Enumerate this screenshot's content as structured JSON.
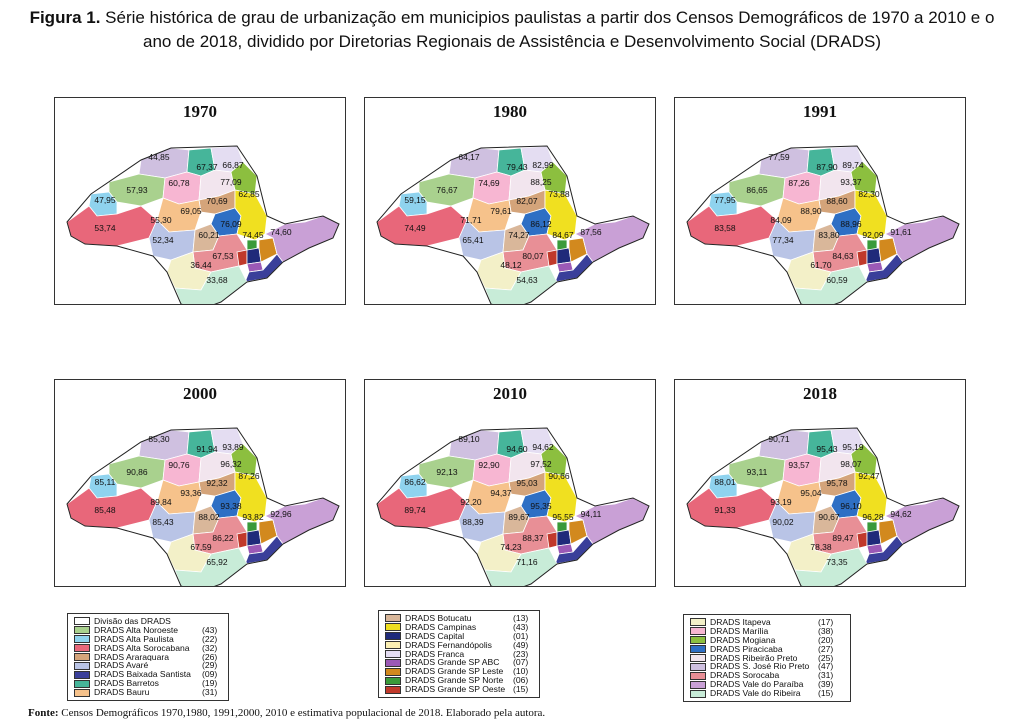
{
  "title": {
    "label": "Figura 1.",
    "text": "Série histórica de grau de urbanização em municipios paulistas a partir dos Censos Demográficos de 1970 a 2010 e o ano de 2018, dividido por Diretorias Regionais de Assistência e Desenvolvimento Social (DRADS)"
  },
  "colors": {
    "alta_noroeste": "#a9d18e",
    "alta_paulista": "#8fd3ee",
    "alta_sorocabana": "#e8677a",
    "araraquara": "#d4a47a",
    "avare": "#b9c4e6",
    "baixada_santista": "#3a3f9a",
    "barretos": "#46b59a",
    "bauru": "#f6c28b",
    "botucatu": "#d9b79a",
    "campinas": "#f0e020",
    "capital": "#1f2a7a",
    "fernandopolis": "#fbefb3",
    "franca": "#e4ddf2",
    "grande_sp_abc": "#9b59b6",
    "grande_sp_leste": "#d2891e",
    "grande_sp_norte": "#3a9a3a",
    "grande_sp_oeste": "#c0392b",
    "itapeva": "#f3f0c8",
    "marilia": "#f7b6d2",
    "mogiana": "#8cbf3f",
    "piracicaba": "#2e6fc4",
    "ribeirao_preto": "#f2e5ee",
    "sjrp": "#cfc0e0",
    "sorocaba": "#e88f96",
    "vale_paraiba": "#c9a0d6",
    "vale_ribeira": "#c8ecd8"
  },
  "maps": [
    {
      "year": "1970",
      "values": [
        "44,85",
        "67,37",
        "66,87",
        "57,93",
        "60,78",
        "77,09",
        "62,85",
        "47,95",
        "70,69",
        "69,05",
        "76,09",
        "53,74",
        "55,30",
        "74,45",
        "74,60",
        "52,34",
        "60,21",
        "67,53",
        "36,44",
        "33,68"
      ]
    },
    {
      "year": "1980",
      "values": [
        "64,17",
        "79,43",
        "82,99",
        "76,67",
        "74,69",
        "88,25",
        "73,88",
        "59,15",
        "82,07",
        "79,61",
        "86,12",
        "74,49",
        "71,71",
        "84,67",
        "87,56",
        "65,41",
        "74,27",
        "80,07",
        "48,12",
        "54,63"
      ]
    },
    {
      "year": "1991",
      "values": [
        "77,59",
        "87,90",
        "89,74",
        "86,65",
        "87,26",
        "93,37",
        "82,30",
        "77,95",
        "88,60",
        "88,90",
        "88,96",
        "83,58",
        "84,09",
        "92,09",
        "91,61",
        "77,34",
        "83,80",
        "84,63",
        "61,70",
        "60,59"
      ]
    },
    {
      "year": "2000",
      "values": [
        "85,30",
        "91,94",
        "93,89",
        "90,86",
        "90,76",
        "96,32",
        "87,26",
        "85,11",
        "92,32",
        "93,36",
        "93,38",
        "85,48",
        "89,84",
        "93,82",
        "92,96",
        "85,43",
        "88,02",
        "86,22",
        "67,59",
        "65,92"
      ]
    },
    {
      "year": "2010",
      "values": [
        "89,10",
        "94,60",
        "94,62",
        "92,13",
        "92,90",
        "97,52",
        "90,66",
        "86,62",
        "95,03",
        "94,37",
        "95,35",
        "89,74",
        "92,20",
        "95,55",
        "94,11",
        "88,39",
        "89,67",
        "88,37",
        "74,23",
        "71,16"
      ]
    },
    {
      "year": "2018",
      "values": [
        "90,71",
        "95,43",
        "95,19",
        "93,11",
        "93,57",
        "98,07",
        "92,47",
        "88,01",
        "95,78",
        "95,04",
        "96,10",
        "91,33",
        "93,19",
        "96,28",
        "94,62",
        "90,02",
        "90,67",
        "89,47",
        "78,38",
        "73,35"
      ]
    }
  ],
  "legends": [
    {
      "items": [
        {
          "name": "Divisão das DRADS",
          "count": "",
          "color": "#ffffff"
        },
        {
          "name": "DRADS Alta Noroeste",
          "count": "(43)",
          "color": "#a9d18e"
        },
        {
          "name": "DRADS Alta Paulista",
          "count": "(22)",
          "color": "#8fd3ee"
        },
        {
          "name": "DRADS Alta Sorocabana",
          "count": "(32)",
          "color": "#e8677a"
        },
        {
          "name": "DRADS Araraquara",
          "count": "(26)",
          "color": "#d4a47a"
        },
        {
          "name": "DRADS Avaré",
          "count": "(29)",
          "color": "#b9c4e6"
        },
        {
          "name": "DRADS Baixada Santista",
          "count": "(09)",
          "color": "#3a3f9a"
        },
        {
          "name": "DRADS Barretos",
          "count": "(19)",
          "color": "#46b59a"
        },
        {
          "name": "DRADS Bauru",
          "count": "(31)",
          "color": "#f6c28b"
        }
      ]
    },
    {
      "items": [
        {
          "name": "DRADS Botucatu",
          "count": "(13)",
          "color": "#d9b79a"
        },
        {
          "name": "DRADS Campinas",
          "count": "(43)",
          "color": "#f0e020"
        },
        {
          "name": "DRADS Capital",
          "count": "(01)",
          "color": "#1f2a7a"
        },
        {
          "name": "DRADS Fernandópolis",
          "count": "(49)",
          "color": "#fbefb3"
        },
        {
          "name": "DRADS Franca",
          "count": "(23)",
          "color": "#e4ddf2"
        },
        {
          "name": "DRADS Grande SP ABC",
          "count": "(07)",
          "color": "#9b59b6"
        },
        {
          "name": "DRADS Grande SP Leste",
          "count": "(10)",
          "color": "#d2891e"
        },
        {
          "name": "DRADS Grande SP Norte",
          "count": "(06)",
          "color": "#3a9a3a"
        },
        {
          "name": "DRADS Grande SP Oeste",
          "count": "(15)",
          "color": "#c0392b"
        }
      ]
    },
    {
      "items": [
        {
          "name": "DRADS Itapeva",
          "count": "(17)",
          "color": "#f3f0c8"
        },
        {
          "name": "DRADS Marília",
          "count": "(38)",
          "color": "#f7b6d2"
        },
        {
          "name": "DRADS Mogiana",
          "count": "(20)",
          "color": "#8cbf3f"
        },
        {
          "name": "DRADS Piracicaba",
          "count": "(27)",
          "color": "#2e6fc4"
        },
        {
          "name": "DRADS Ribeirão Preto",
          "count": "(25)",
          "color": "#f2e5ee"
        },
        {
          "name": "DRADS S. José Rio Preto",
          "count": "(47)",
          "color": "#cfc0e0"
        },
        {
          "name": "DRADS Sorocaba",
          "count": "(31)",
          "color": "#e88f96"
        },
        {
          "name": "DRADS Vale do Paraíba",
          "count": "(39)",
          "color": "#c9a0d6"
        },
        {
          "name": "DRADS Vale do Ribeira",
          "count": "(15)",
          "color": "#c8ecd8"
        }
      ]
    }
  ],
  "source": {
    "label": "Fonte:",
    "text": "Censos Demográficos 1970,1980, 1991,2000, 2010 e estimativa populacional de 2018. Elaborado pela autora."
  }
}
